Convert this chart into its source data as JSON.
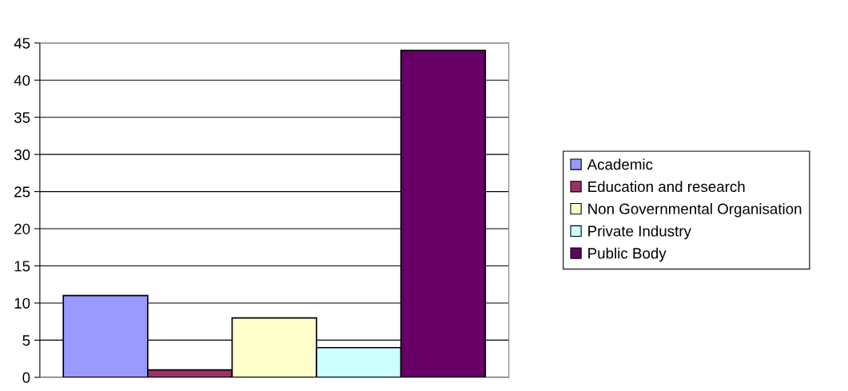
{
  "chart_data": {
    "type": "bar",
    "categories": [
      null
    ],
    "series": [
      {
        "name": "Academic",
        "color": "#9999ff",
        "values": [
          11
        ]
      },
      {
        "name": "Education and research",
        "color": "#993366",
        "values": [
          1
        ]
      },
      {
        "name": "Non Governmental Organisation",
        "color": "#ffffcc",
        "values": [
          8
        ]
      },
      {
        "name": "Private Industry",
        "color": "#ccffff",
        "values": [
          4
        ]
      },
      {
        "name": "Public Body",
        "color": "#660066",
        "values": [
          44
        ]
      }
    ],
    "ylim": [
      0,
      45
    ],
    "yticks": [
      0,
      5,
      10,
      15,
      20,
      25,
      30,
      35,
      40,
      45
    ],
    "grid": "y",
    "legend": "right",
    "tick_labels": "y"
  }
}
